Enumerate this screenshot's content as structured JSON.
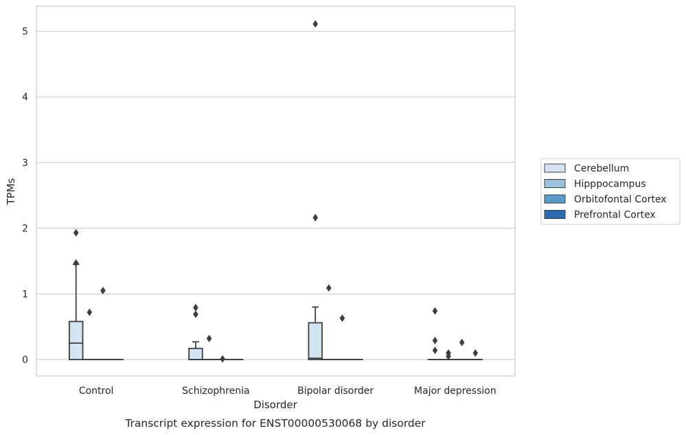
{
  "caption": "Transcript expression for ENST00000530068 by disorder",
  "chart_data": {
    "type": "box",
    "xlabel": "Disorder",
    "ylabel": "TPMs",
    "ylim": [
      -0.25,
      5.38
    ],
    "yticks": [
      0,
      1,
      2,
      3,
      4,
      5
    ],
    "grid": "horizontal",
    "categories": [
      "Control",
      "Schizophrenia",
      "Bipolar disorder",
      "Major depression"
    ],
    "legend": {
      "placement": "right",
      "entries": [
        "Cerebellum",
        "Hipppocampus",
        "Orbitofontal Cortex",
        "Prefrontal Cortex"
      ]
    },
    "series": [
      {
        "name": "Cerebellum",
        "color": "#d4e3f2",
        "boxes": [
          {
            "q1": 0,
            "median": 0.25,
            "q3": 0.58,
            "whisker_low": 0,
            "whisker_high": 1.45,
            "outliers": [
              1.47,
              1.93
            ]
          },
          {
            "q1": 0,
            "median": 0,
            "q3": 0.17,
            "whisker_low": 0,
            "whisker_high": 0.27,
            "outliers": [
              0.69,
              0.79
            ]
          },
          {
            "q1": 0,
            "median": 0.02,
            "q3": 0.56,
            "whisker_low": 0,
            "whisker_high": 0.8,
            "outliers": [
              2.16,
              5.11
            ]
          },
          {
            "q1": 0,
            "median": 0,
            "q3": 0,
            "whisker_low": 0,
            "whisker_high": 0,
            "outliers": [
              0.14,
              0.29,
              0.74
            ]
          }
        ]
      },
      {
        "name": "Hipppocampus",
        "color": "#9ac1de",
        "boxes": [
          {
            "q1": 0,
            "median": 0,
            "q3": 0,
            "whisker_low": 0,
            "whisker_high": 0,
            "outliers": [
              0.72
            ]
          },
          {
            "q1": 0,
            "median": 0,
            "q3": 0,
            "whisker_low": 0,
            "whisker_high": 0,
            "outliers": [
              0.32
            ]
          },
          {
            "q1": 0,
            "median": 0,
            "q3": 0,
            "whisker_low": 0,
            "whisker_high": 0,
            "outliers": [
              1.09
            ]
          },
          {
            "q1": 0,
            "median": 0,
            "q3": 0,
            "whisker_low": 0,
            "whisker_high": 0,
            "outliers": [
              0.05,
              0.1
            ]
          }
        ]
      },
      {
        "name": "Orbitofontal Cortex",
        "color": "#5b9ac8",
        "boxes": [
          {
            "q1": 0,
            "median": 0,
            "q3": 0,
            "whisker_low": 0,
            "whisker_high": 0,
            "outliers": [
              1.05
            ]
          },
          {
            "q1": 0,
            "median": 0,
            "q3": 0,
            "whisker_low": 0,
            "whisker_high": 0,
            "outliers": [
              0.01
            ]
          },
          {
            "q1": 0,
            "median": 0,
            "q3": 0,
            "whisker_low": 0,
            "whisker_high": 0,
            "outliers": [
              0.63
            ]
          },
          {
            "q1": 0,
            "median": 0,
            "q3": 0,
            "whisker_low": 0,
            "whisker_high": 0,
            "outliers": [
              0.26
            ]
          }
        ]
      },
      {
        "name": "Prefrontal Cortex",
        "color": "#2a6aad",
        "boxes": [
          {
            "q1": 0,
            "median": 0,
            "q3": 0,
            "whisker_low": 0,
            "whisker_high": 0,
            "outliers": []
          },
          {
            "q1": 0,
            "median": 0,
            "q3": 0,
            "whisker_low": 0,
            "whisker_high": 0,
            "outliers": []
          },
          {
            "q1": 0,
            "median": 0,
            "q3": 0,
            "whisker_low": 0,
            "whisker_high": 0,
            "outliers": []
          },
          {
            "q1": 0,
            "median": 0,
            "q3": 0,
            "whisker_low": 0,
            "whisker_high": 0,
            "outliers": [
              0.1
            ]
          }
        ]
      }
    ]
  }
}
